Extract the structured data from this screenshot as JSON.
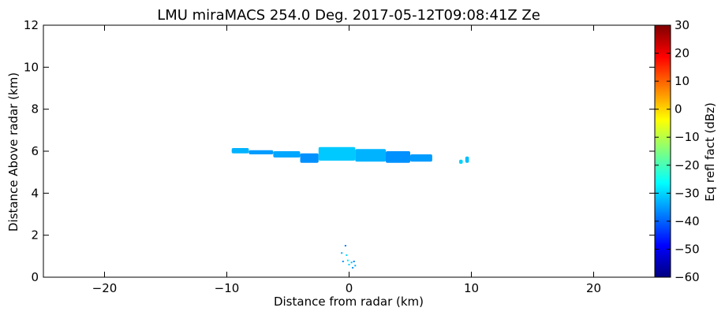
{
  "chart_data": {
    "type": "heatmap",
    "title": "LMU miraMACS 254.0 Deg. 2017-05-12T09:08:41Z  Ze",
    "xlabel": "Distance from radar (km)",
    "ylabel": "Distance Above radar  (km)",
    "xlim": [
      -25,
      25
    ],
    "ylim": [
      0,
      12
    ],
    "x_ticks": [
      -20,
      -10,
      0,
      10,
      20
    ],
    "x_tick_labels": [
      "−20",
      "−10",
      "0",
      "10",
      "20"
    ],
    "y_ticks": [
      0,
      2,
      4,
      6,
      8,
      10,
      12
    ],
    "y_tick_labels": [
      "0",
      "2",
      "4",
      "6",
      "8",
      "10",
      "12"
    ],
    "colorbar": {
      "label": "Eq refl fact (dBz)",
      "range": [
        -60,
        30
      ],
      "colormap": "jet",
      "ticks": [
        -60,
        -50,
        -40,
        -30,
        -20,
        -10,
        0,
        10,
        20,
        30
      ],
      "tick_labels": [
        "−60",
        "−50",
        "−40",
        "−30",
        "−20",
        "−10",
        "0",
        "10",
        "20",
        "30"
      ]
    },
    "echoes": [
      {
        "x_start": -9.6,
        "x_end": -8.2,
        "y_bottom": 5.9,
        "y_top": 6.15,
        "dbz": -33
      },
      {
        "x_start": -8.2,
        "x_end": -6.2,
        "y_bottom": 5.85,
        "y_top": 6.05,
        "dbz": -35
      },
      {
        "x_start": -6.2,
        "x_end": -4.0,
        "y_bottom": 5.7,
        "y_top": 6.0,
        "dbz": -34
      },
      {
        "x_start": -4.0,
        "x_end": -2.5,
        "y_bottom": 5.45,
        "y_top": 5.9,
        "dbz": -36
      },
      {
        "x_start": -2.5,
        "x_end": 0.5,
        "y_bottom": 5.55,
        "y_top": 6.2,
        "dbz": -31
      },
      {
        "x_start": 0.5,
        "x_end": 3.0,
        "y_bottom": 5.5,
        "y_top": 6.1,
        "dbz": -33
      },
      {
        "x_start": 3.0,
        "x_end": 5.0,
        "y_bottom": 5.45,
        "y_top": 6.0,
        "dbz": -36
      },
      {
        "x_start": 5.0,
        "x_end": 6.8,
        "y_bottom": 5.5,
        "y_top": 5.85,
        "dbz": -35
      },
      {
        "x_start": 9.0,
        "x_end": 9.3,
        "y_bottom": 5.4,
        "y_top": 5.6,
        "dbz": -30
      },
      {
        "x_start": 9.5,
        "x_end": 9.8,
        "y_bottom": 5.45,
        "y_top": 5.75,
        "dbz": -32
      }
    ],
    "points": [
      {
        "x": -0.3,
        "y": 1.5,
        "dbz": -38
      },
      {
        "x": -0.6,
        "y": 1.15,
        "dbz": -34
      },
      {
        "x": -0.2,
        "y": 1.05,
        "dbz": -30
      },
      {
        "x": -0.5,
        "y": 0.75,
        "dbz": -36
      },
      {
        "x": -0.1,
        "y": 0.8,
        "dbz": -28
      },
      {
        "x": 0.2,
        "y": 0.7,
        "dbz": -32
      },
      {
        "x": 0.4,
        "y": 0.75,
        "dbz": -38
      },
      {
        "x": 0.0,
        "y": 0.6,
        "dbz": -30
      },
      {
        "x": 0.3,
        "y": 0.45,
        "dbz": -36
      },
      {
        "x": 0.5,
        "y": 0.55,
        "dbz": -33
      }
    ]
  }
}
